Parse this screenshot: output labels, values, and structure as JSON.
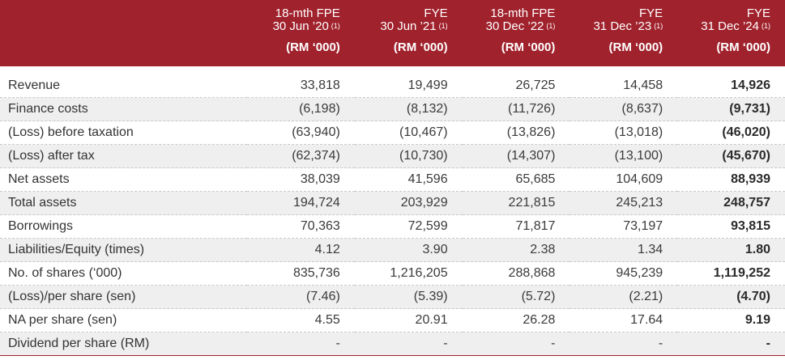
{
  "columns": [
    {
      "line1": "18-mth FPE",
      "line2": "30 Jun ’20",
      "note": "(1)",
      "unit": "(RM ‘000)"
    },
    {
      "line1": "FYE",
      "line2": "30 Jun ’21",
      "note": "(1)",
      "unit": "(RM ‘000)"
    },
    {
      "line1": "18-mth FPE",
      "line2": "30 Dec ’22",
      "note": "(1)",
      "unit": "(RM ‘000)"
    },
    {
      "line1": "FYE",
      "line2": "31 Dec ’23",
      "note": "(1)",
      "unit": "(RM ‘000)"
    },
    {
      "line1": "FYE",
      "line2": "31 Dec ’24",
      "note": "(1)",
      "unit": "(RM ‘000)"
    }
  ],
  "rows": [
    {
      "label": "Revenue",
      "values": [
        "33,818",
        "19,499",
        "26,725",
        "14,458",
        "14,926"
      ]
    },
    {
      "label": "Finance costs",
      "values": [
        "(6,198)",
        "(8,132)",
        "(11,726)",
        "(8,637)",
        "(9,731)"
      ]
    },
    {
      "label": "(Loss) before taxation",
      "values": [
        "(63,940)",
        "(10,467)",
        "(13,826)",
        "(13,018)",
        "(46,020)"
      ]
    },
    {
      "label": "(Loss) after tax",
      "values": [
        "(62,374)",
        "(10,730)",
        "(14,307)",
        "(13,100)",
        "(45,670)"
      ]
    },
    {
      "label": "Net assets",
      "values": [
        "38,039",
        "41,596",
        "65,685",
        "104,609",
        "88,939"
      ]
    },
    {
      "label": "Total assets",
      "values": [
        "194,724",
        "203,929",
        "221,815",
        "245,213",
        "248,757"
      ]
    },
    {
      "label": "Borrowings",
      "values": [
        "70,363",
        "72,599",
        "71,817",
        "73,197",
        "93,815"
      ]
    },
    {
      "label": "Liabilities/Equity (times)",
      "values": [
        "4.12",
        "3.90",
        "2.38",
        "1.34",
        "1.80"
      ]
    },
    {
      "label": "No. of shares (‘000)",
      "values": [
        "835,736",
        "1,216,205",
        "288,868",
        "945,239",
        "1,119,252"
      ]
    },
    {
      "label": "(Loss)/per share (sen)",
      "values": [
        "(7.46)",
        "(5.39)",
        "(5.72)",
        "(2.21)",
        "(4.70)"
      ]
    },
    {
      "label": "NA per share (sen)",
      "values": [
        "4.55",
        "20.91",
        "26.28",
        "17.64",
        "9.19"
      ]
    },
    {
      "label": "Dividend per share (RM)",
      "values": [
        "-",
        "-",
        "-",
        "-",
        "-"
      ]
    }
  ],
  "colors": {
    "header_bg": "#a0222d",
    "shade": "#efefef"
  }
}
